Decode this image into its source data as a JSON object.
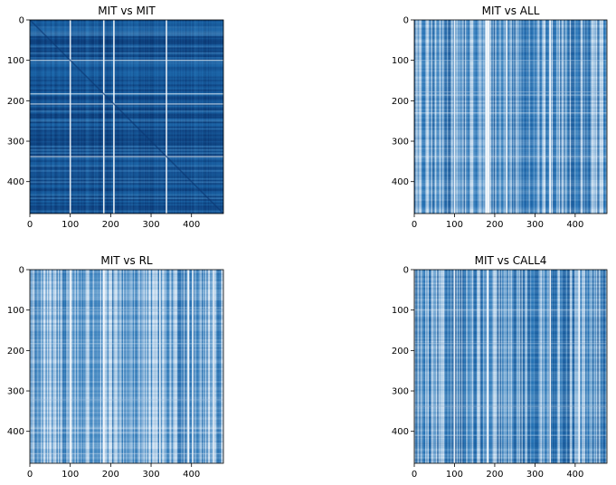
{
  "figure": {
    "background": "#ffffff"
  },
  "colormap": {
    "dark": "#08306b",
    "mid": "#2171b5",
    "light": "#deebf7",
    "white": "#ffffff"
  },
  "chart_data": [
    {
      "type": "heatmap",
      "title": "MIT vs MIT",
      "xlim": [
        0,
        479
      ],
      "ylim": [
        479,
        0
      ],
      "xticks": [
        0,
        100,
        200,
        300,
        400
      ],
      "yticks": [
        0,
        100,
        200,
        300,
        400
      ],
      "pattern": "grid",
      "base_level": 0.18,
      "bright_stripes": [
        183,
        208,
        338,
        100
      ]
    },
    {
      "type": "heatmap",
      "title": "MIT vs ALL",
      "xlim": [
        0,
        479
      ],
      "ylim": [
        479,
        0
      ],
      "xticks": [
        0,
        100,
        200,
        300,
        400
      ],
      "yticks": [
        0,
        100,
        200,
        300,
        400
      ],
      "pattern": "vertical",
      "base_level": 0.45,
      "bright_stripes": [
        178,
        186,
        100,
        338,
        230
      ]
    },
    {
      "type": "heatmap",
      "title": "MIT vs RL",
      "xlim": [
        0,
        479
      ],
      "ylim": [
        479,
        0
      ],
      "xticks": [
        0,
        100,
        200,
        300,
        400
      ],
      "yticks": [
        0,
        100,
        200,
        300,
        400
      ],
      "pattern": "vertical",
      "base_level": 0.5,
      "bright_stripes": [
        183,
        322,
        392,
        403,
        100,
        455
      ]
    },
    {
      "type": "heatmap",
      "title": "MIT vs CALL4",
      "xlim": [
        0,
        479
      ],
      "ylim": [
        479,
        0
      ],
      "xticks": [
        0,
        100,
        200,
        300,
        400
      ],
      "yticks": [
        0,
        100,
        200,
        300,
        400
      ],
      "pattern": "vertical",
      "base_level": 0.42,
      "bright_stripes": [
        183,
        100,
        338,
        410
      ]
    }
  ]
}
